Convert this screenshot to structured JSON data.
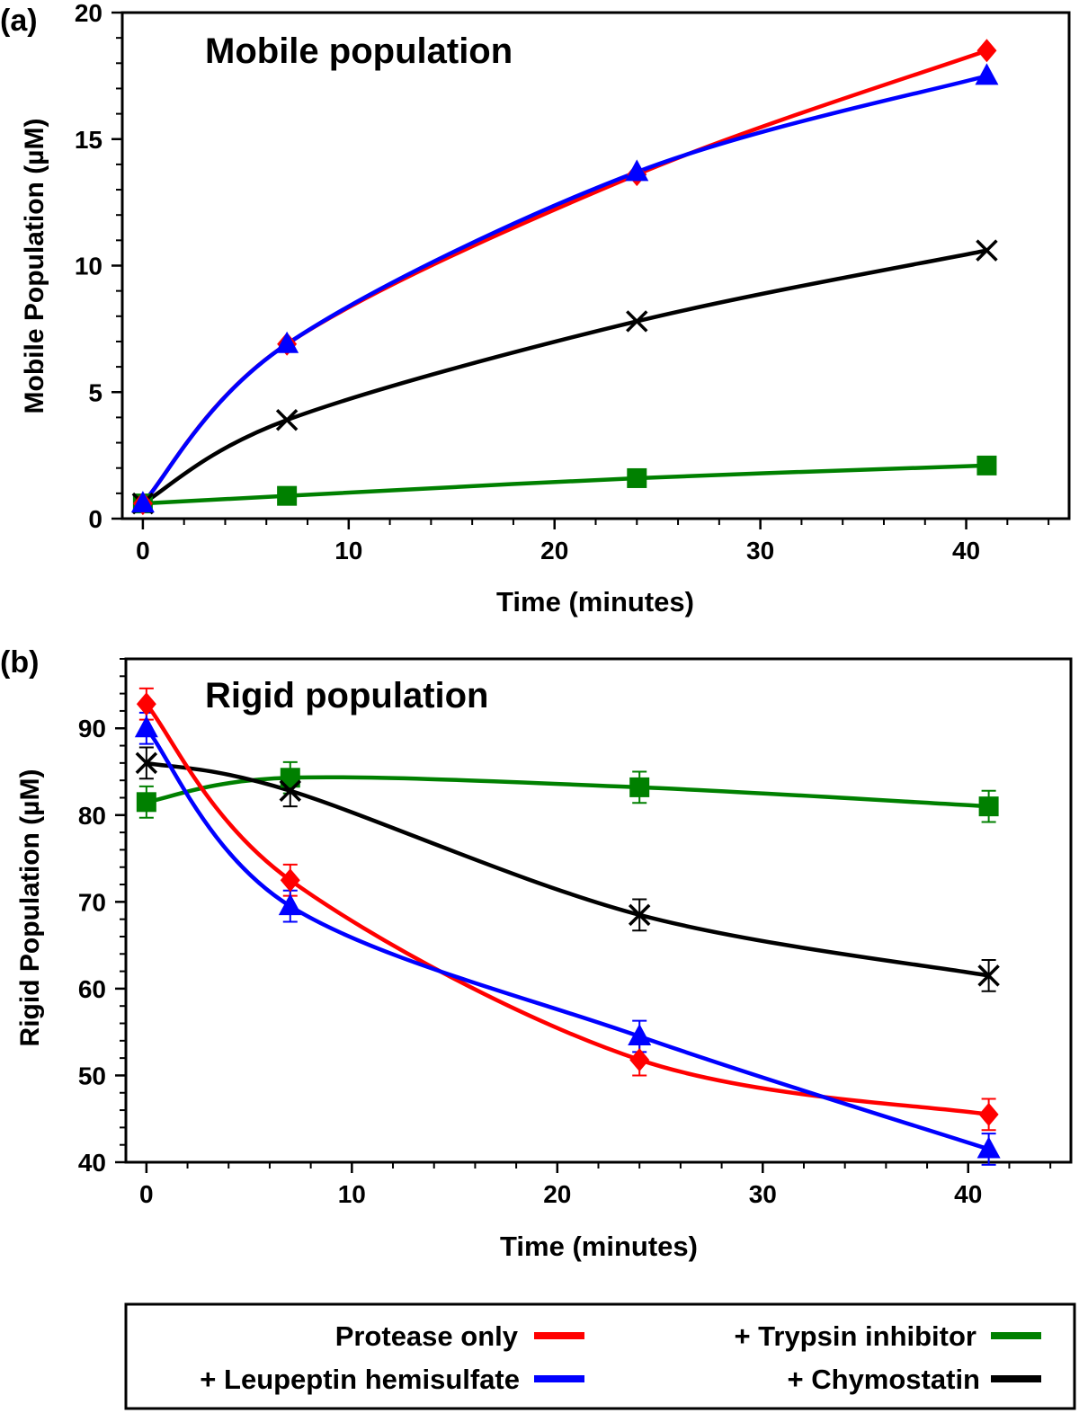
{
  "chart_data": [
    {
      "panel_label": "(a)",
      "type": "line",
      "title": "Mobile population",
      "xlabel": "Time (minutes)",
      "ylabel": "Mobile Population (µM)",
      "xlim": [
        -1,
        45
      ],
      "ylim": [
        0,
        20
      ],
      "x_ticks": [
        0,
        10,
        20,
        30,
        40
      ],
      "x_tick_labels": [
        "0",
        "10",
        "20",
        "30",
        "40"
      ],
      "y_ticks": [
        0,
        5,
        10,
        15,
        20
      ],
      "y_tick_labels": [
        "0",
        "5",
        "10",
        "15",
        "20"
      ],
      "x": [
        0,
        7,
        24,
        41
      ],
      "series": [
        {
          "name": "Protease only",
          "color": "#ff0000",
          "marker": "diamond",
          "values": [
            0.6,
            6.9,
            13.6,
            18.5
          ]
        },
        {
          "name": "+ Leupeptin hemisulfate",
          "color": "#0000ff",
          "marker": "triangle",
          "values": [
            0.6,
            6.9,
            13.7,
            17.5
          ]
        },
        {
          "name": "+ Trypsin inhibitor",
          "color": "#008000",
          "marker": "square",
          "values": [
            0.6,
            0.9,
            1.6,
            2.1
          ]
        },
        {
          "name": "+ Chymostatin",
          "color": "#000000",
          "marker": "x",
          "values": [
            0.6,
            3.9,
            7.8,
            10.6
          ]
        }
      ]
    },
    {
      "panel_label": "(b)",
      "type": "line",
      "title": "Rigid population",
      "xlabel": "Time (minutes)",
      "ylabel": "Rigid Population (µM)",
      "xlim": [
        -1,
        45
      ],
      "ylim": [
        40,
        98
      ],
      "x_ticks": [
        0,
        10,
        20,
        30,
        40
      ],
      "x_tick_labels": [
        "0",
        "10",
        "20",
        "30",
        "40"
      ],
      "y_ticks": [
        40,
        50,
        60,
        70,
        80,
        90
      ],
      "y_tick_labels": [
        "40",
        "50",
        "60",
        "70",
        "80",
        "90"
      ],
      "x": [
        0,
        7,
        24,
        41
      ],
      "series": [
        {
          "name": "Protease only",
          "color": "#ff0000",
          "marker": "diamond",
          "values": [
            92.8,
            72.5,
            51.8,
            45.5
          ],
          "errors": [
            1.8,
            1.8,
            1.8,
            1.8
          ]
        },
        {
          "name": "+ Leupeptin hemisulfate",
          "color": "#0000ff",
          "marker": "triangle",
          "values": [
            90.0,
            69.5,
            54.5,
            41.5
          ],
          "errors": [
            1.8,
            1.8,
            1.8,
            1.8
          ]
        },
        {
          "name": "+ Trypsin inhibitor",
          "color": "#008000",
          "marker": "square",
          "values": [
            81.5,
            84.3,
            83.2,
            81.0
          ],
          "errors": [
            1.8,
            1.8,
            1.8,
            1.8
          ]
        },
        {
          "name": "+ Chymostatin",
          "color": "#000000",
          "marker": "x",
          "values": [
            86.0,
            82.8,
            68.5,
            61.5
          ],
          "errors": [
            1.8,
            1.8,
            1.8,
            1.8
          ]
        }
      ]
    }
  ],
  "legend": {
    "items": [
      {
        "label": "Protease only",
        "color": "#ff0000"
      },
      {
        "label": "+ Trypsin inhibitor",
        "color": "#008000"
      },
      {
        "label": "+ Leupeptin hemisulfate",
        "color": "#0000ff"
      },
      {
        "label": "+ Chymostatin",
        "color": "#000000"
      }
    ]
  }
}
